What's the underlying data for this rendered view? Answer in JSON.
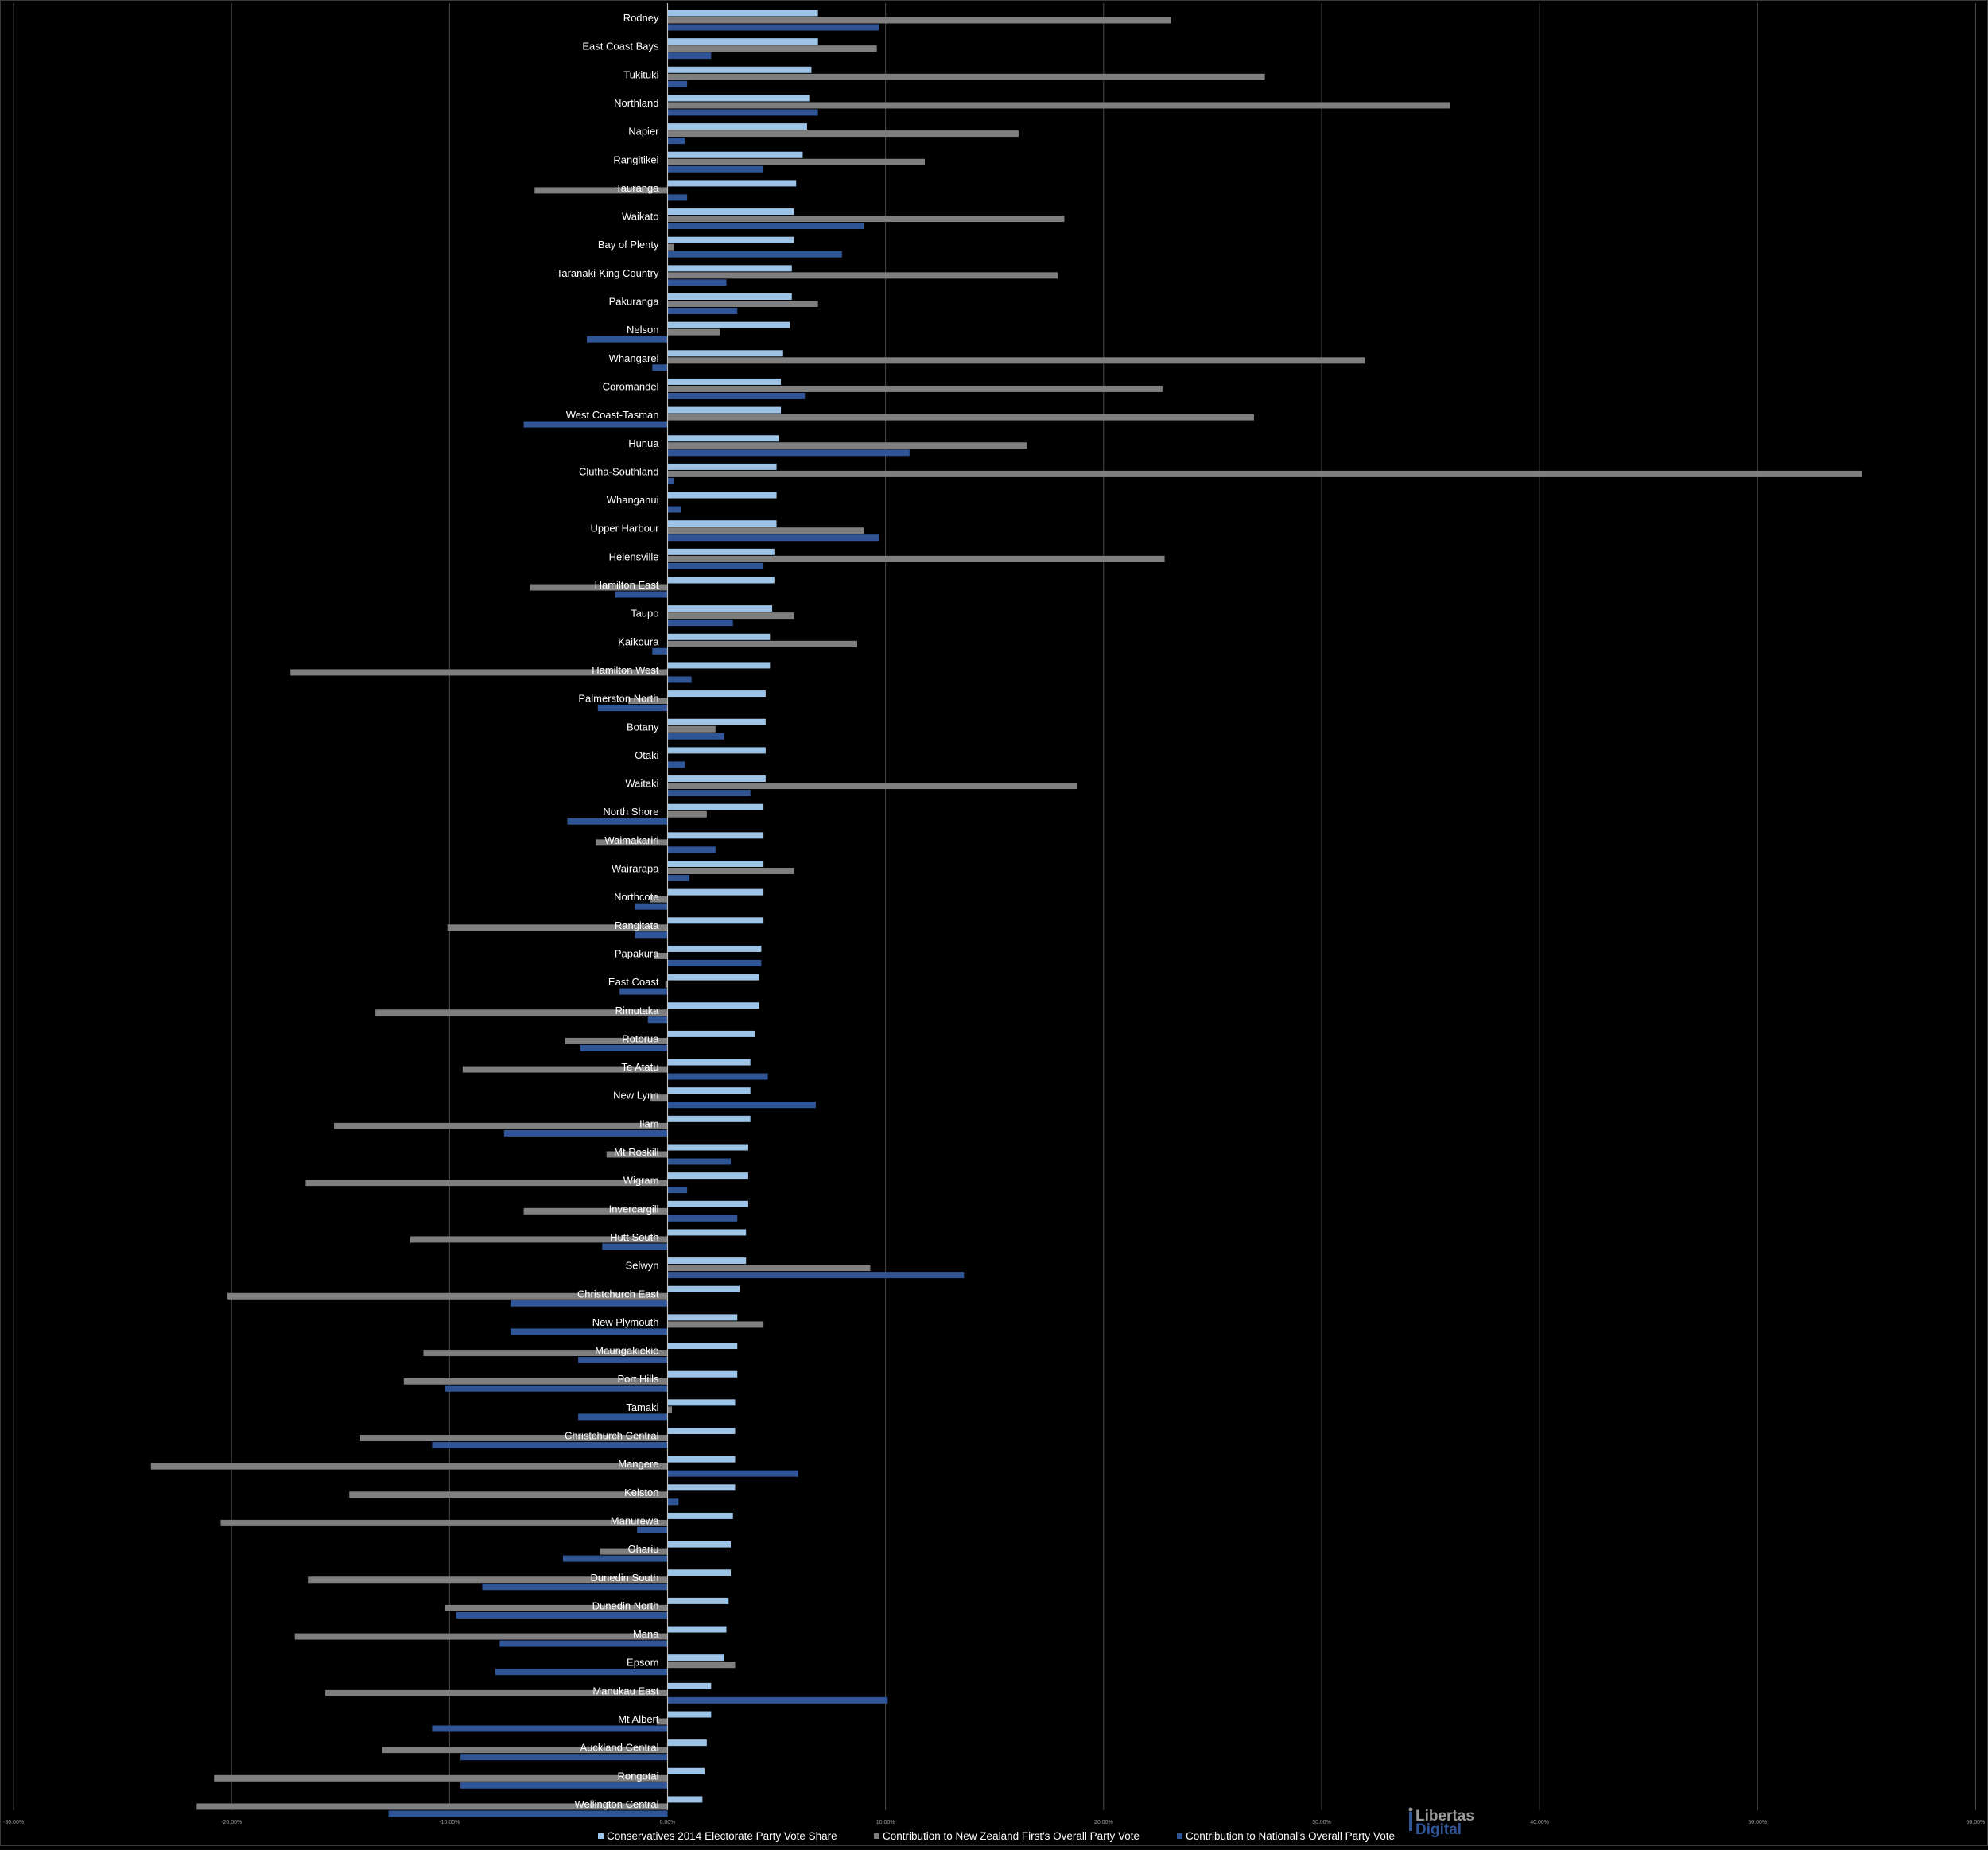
{
  "chart_data": {
    "type": "bar",
    "orientation": "horizontal",
    "xlim": [
      -0.3,
      0.6
    ],
    "x_ticks": [
      -0.3,
      -0.2,
      -0.1,
      0,
      0.1,
      0.2,
      0.3,
      0.4,
      0.5,
      0.6
    ],
    "x_tick_labels": [
      "-30.00%",
      "-20.00%",
      "-10.00%",
      "0.00%",
      "10.00%",
      "20.00%",
      "30.00%",
      "40.00%",
      "50.00%",
      "60.00%"
    ],
    "grid": "vertical",
    "legend_position": "bottom",
    "colors": {
      "background": "#000000",
      "conservatives": "#9dc3e6",
      "nz_first": "#7f7f7f",
      "national": "#2f5597",
      "grid": "#4a4a4a",
      "axis": "#bfbfbf"
    },
    "categories": [
      "Rodney",
      "East Coast Bays",
      "Tukituki",
      "Northland",
      "Napier",
      "Rangitikei",
      "Tauranga",
      "Waikato",
      "Bay of Plenty",
      "Taranaki-King Country",
      "Pakuranga",
      "Nelson",
      "Whangarei",
      "Coromandel",
      "West Coast-Tasman",
      "Hunua",
      "Clutha-Southland",
      "Whanganui",
      "Upper Harbour",
      "Helensville",
      "Hamilton East",
      "Taupo",
      "Kaikoura",
      "Hamilton West",
      "Palmerston North",
      "Botany",
      "Otaki",
      "Waitaki",
      "North Shore",
      "Waimakariri",
      "Wairarapa",
      "Northcote",
      "Rangitata",
      "Papakura",
      "East Coast",
      "Rimutaka",
      "Rotorua",
      "Te Atatu",
      "New Lynn",
      "Ilam",
      "Mt Roskill",
      "Wigram",
      "Invercargill",
      "Hutt South",
      "Selwyn",
      "Christchurch East",
      "New Plymouth",
      "Maungakiekie",
      "Port Hills",
      "Tamaki",
      "Christchurch Central",
      "Mangere",
      "Kelston",
      "Manurewa",
      "Ohariu",
      "Dunedin South",
      "Dunedin North",
      "Mana",
      "Epsom",
      "Manukau East",
      "Mt Albert",
      "Auckland Central",
      "Rongotai",
      "Wellington Central"
    ],
    "series": [
      {
        "name": "Conservatives 2014 Electorate Party Vote Share",
        "values": [
          0.069,
          0.069,
          0.066,
          0.065,
          0.064,
          0.062,
          0.059,
          0.058,
          0.058,
          0.057,
          0.057,
          0.056,
          0.053,
          0.052,
          0.052,
          0.051,
          0.05,
          0.05,
          0.05,
          0.049,
          0.049,
          0.048,
          0.047,
          0.047,
          0.045,
          0.045,
          0.045,
          0.045,
          0.044,
          0.044,
          0.044,
          0.044,
          0.044,
          0.043,
          0.042,
          0.042,
          0.04,
          0.038,
          0.038,
          0.038,
          0.037,
          0.037,
          0.037,
          0.036,
          0.036,
          0.033,
          0.032,
          0.032,
          0.032,
          0.031,
          0.031,
          0.031,
          0.031,
          0.03,
          0.029,
          0.029,
          0.028,
          0.027,
          0.026,
          0.02,
          0.02,
          0.018,
          0.017,
          0.016
        ]
      },
      {
        "name": "Contribution to New Zealand First's Overall Party Vote",
        "values": [
          0.231,
          0.096,
          0.274,
          0.359,
          0.161,
          0.118,
          -0.061,
          0.182,
          0.003,
          0.179,
          0.069,
          0.024,
          0.32,
          0.227,
          0.269,
          0.165,
          0.548,
          0.0,
          0.09,
          0.228,
          -0.063,
          0.058,
          0.087,
          -0.173,
          -0.018,
          0.022,
          0.0,
          0.188,
          0.018,
          -0.033,
          0.058,
          -0.008,
          -0.101,
          -0.006,
          -0.001,
          -0.134,
          -0.047,
          -0.094,
          -0.008,
          -0.153,
          -0.028,
          -0.166,
          -0.066,
          -0.118,
          0.093,
          -0.202,
          0.044,
          -0.112,
          -0.121,
          0.002,
          -0.141,
          -0.237,
          -0.146,
          -0.205,
          -0.031,
          -0.165,
          -0.102,
          -0.171,
          0.031,
          -0.157,
          -0.005,
          -0.131,
          -0.208,
          -0.216
        ]
      },
      {
        "name": "Contribution to National's Overall Party Vote",
        "values": [
          0.097,
          0.02,
          0.009,
          0.069,
          0.008,
          0.044,
          0.009,
          0.09,
          0.08,
          0.027,
          0.032,
          -0.037,
          -0.007,
          0.063,
          -0.066,
          0.111,
          0.003,
          0.006,
          0.097,
          0.044,
          -0.024,
          0.03,
          -0.007,
          0.011,
          -0.032,
          0.026,
          0.008,
          0.038,
          -0.046,
          0.022,
          0.01,
          -0.015,
          -0.015,
          0.043,
          -0.022,
          -0.009,
          -0.04,
          0.046,
          0.068,
          -0.075,
          0.029,
          0.009,
          0.032,
          -0.03,
          0.136,
          -0.072,
          -0.072,
          -0.041,
          -0.102,
          -0.041,
          -0.108,
          0.06,
          0.005,
          -0.014,
          -0.048,
          -0.085,
          -0.097,
          -0.077,
          -0.079,
          0.101,
          -0.108,
          -0.095,
          -0.095,
          -0.128
        ]
      }
    ]
  },
  "logo": {
    "line1": "Libertas",
    "line2": "Digital"
  }
}
